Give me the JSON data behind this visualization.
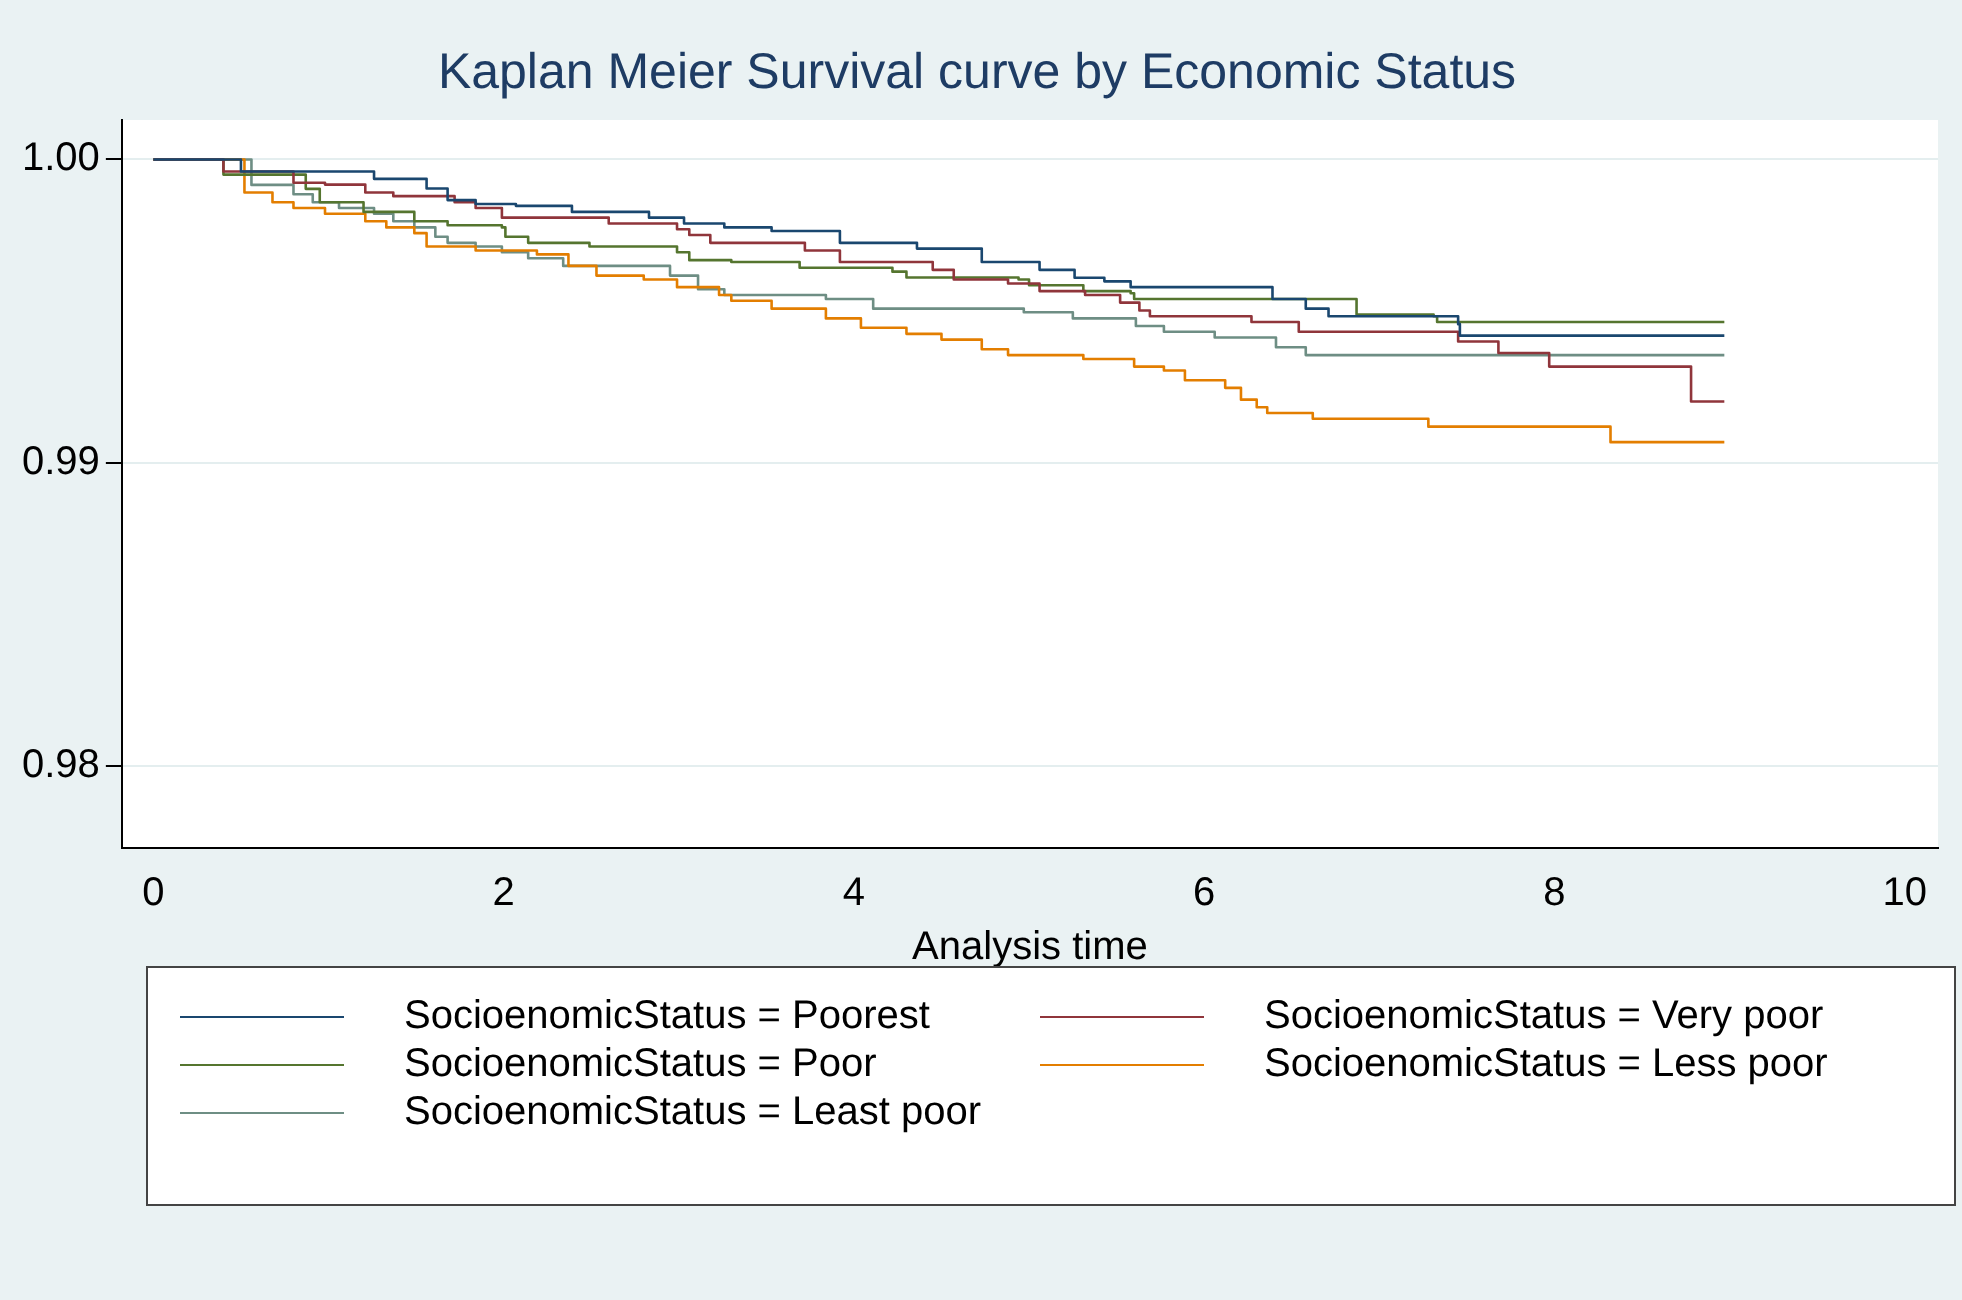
{
  "chart_data": {
    "type": "step",
    "title": "Kaplan Meier Survival curve by Economic Status",
    "xlabel": "Analysis time",
    "xlim": [
      -0.18,
      10.19
    ],
    "xticks": [
      0,
      2,
      4,
      6,
      8,
      10
    ],
    "ylim": [
      0.9773,
      1.0013
    ],
    "yticks": [
      0.98,
      0.99,
      {
        "value": 1,
        "label": "1.00"
      }
    ],
    "grid": "y",
    "legend": "bottom",
    "marker": "none",
    "line_style": "solid",
    "series": [
      {
        "name": "SocioenomicStatus = Poorest",
        "color": "#1a476f",
        "x": [
          0,
          0.5,
          1.26,
          1.56,
          1.68,
          1.84,
          2.07,
          2.39,
          2.83,
          3.03,
          3.26,
          3.53,
          3.92,
          4.36,
          4.73,
          5.06,
          5.26,
          5.43,
          5.58,
          6.39,
          6.58,
          6.71,
          7.45,
          7.46,
          8.97
        ],
        "values": [
          1,
          0.9996,
          0.99936,
          0.99904,
          0.99866,
          0.99853,
          0.99847,
          0.99827,
          0.99808,
          0.99789,
          0.99776,
          0.99764,
          0.99725,
          0.99706,
          0.99662,
          0.99636,
          0.9961,
          0.99598,
          0.99579,
          0.9954,
          0.99508,
          0.99483,
          0.99457,
          0.99419,
          0.99419
        ]
      },
      {
        "name": "SocioenomicStatus = Very poor",
        "color": "#90353b",
        "x": [
          0,
          0.4,
          0.8,
          0.98,
          1.21,
          1.37,
          1.72,
          1.84,
          1.99,
          2.6,
          2.99,
          3.06,
          3.18,
          3.72,
          3.92,
          4.45,
          4.57,
          4.88,
          5.06,
          5.32,
          5.52,
          5.63,
          5.69,
          6.27,
          6.54,
          7.45,
          7.68,
          7.97,
          8.78,
          8.97
        ],
        "values": [
          1,
          0.9996,
          0.99923,
          0.99917,
          0.99891,
          0.99879,
          0.99859,
          0.9984,
          0.99808,
          0.99789,
          0.9977,
          0.99751,
          0.99725,
          0.997,
          0.99662,
          0.99636,
          0.99604,
          0.99591,
          0.99566,
          0.99553,
          0.99528,
          0.99502,
          0.99483,
          0.99464,
          0.99432,
          0.994,
          0.99362,
          0.99317,
          0.99202,
          0.99202
        ]
      },
      {
        "name": "SocioenomicStatus = Poor",
        "color": "#55752f",
        "x": [
          0,
          0.4,
          0.87,
          0.95,
          1.2,
          1.49,
          1.68,
          1.99,
          2.01,
          2.14,
          2.49,
          2.99,
          3.06,
          3.3,
          3.69,
          4.22,
          4.3,
          4.94,
          5,
          5.31,
          5.58,
          5.6,
          6.87,
          7.31,
          7.33,
          8.97
        ],
        "values": [
          1,
          0.9995,
          0.99903,
          0.99859,
          0.99827,
          0.99796,
          0.99783,
          0.99776,
          0.99745,
          0.99725,
          0.99713,
          0.99694,
          0.99668,
          0.99662,
          0.99643,
          0.9963,
          0.99611,
          0.99604,
          0.99585,
          0.99566,
          0.99559,
          0.9954,
          0.99489,
          0.99483,
          0.99464,
          0.99464
        ]
      },
      {
        "name": "SocioenomicStatus = Less poor",
        "color": "#e37e00",
        "x": [
          0,
          0.52,
          0.68,
          0.8,
          0.98,
          1.21,
          1.33,
          1.49,
          1.56,
          1.84,
          2.19,
          2.37,
          2.53,
          2.8,
          2.99,
          3.23,
          3.3,
          3.53,
          3.84,
          4.04,
          4.3,
          4.5,
          4.73,
          4.88,
          5.31,
          5.6,
          5.77,
          5.89,
          6.12,
          6.21,
          6.3,
          6.36,
          6.62,
          7.28,
          8.32,
          8.97
        ],
        "values": [
          1,
          0.99891,
          0.99859,
          0.9984,
          0.99821,
          0.99796,
          0.99776,
          0.99757,
          0.99713,
          0.997,
          0.99687,
          0.99649,
          0.99617,
          0.99604,
          0.99579,
          0.99553,
          0.99534,
          0.99508,
          0.99476,
          0.99445,
          0.99425,
          0.99406,
          0.99374,
          0.99355,
          0.99342,
          0.99317,
          0.99304,
          0.99272,
          0.99247,
          0.99208,
          0.99183,
          0.99164,
          0.99145,
          0.99119,
          0.99068,
          0.99068
        ]
      },
      {
        "name": "SocioenomicStatus = Least poor",
        "color": "#6e8e84",
        "x": [
          0,
          0.56,
          0.8,
          0.91,
          1.06,
          1.26,
          1.37,
          1.49,
          1.61,
          1.68,
          1.84,
          1.99,
          2.14,
          2.34,
          2.95,
          3.11,
          3.26,
          3.84,
          4.11,
          4.97,
          5.25,
          5.61,
          5.77,
          6.06,
          6.41,
          6.58,
          8.97
        ],
        "values": [
          1,
          0.99916,
          0.99885,
          0.99859,
          0.9984,
          0.99821,
          0.99796,
          0.99776,
          0.99745,
          0.99725,
          0.99713,
          0.99694,
          0.99674,
          0.99649,
          0.99617,
          0.99572,
          0.99553,
          0.9954,
          0.99508,
          0.99496,
          0.99476,
          0.99451,
          0.99432,
          0.99413,
          0.99381,
          0.99355,
          0.99355
        ]
      }
    ]
  }
}
